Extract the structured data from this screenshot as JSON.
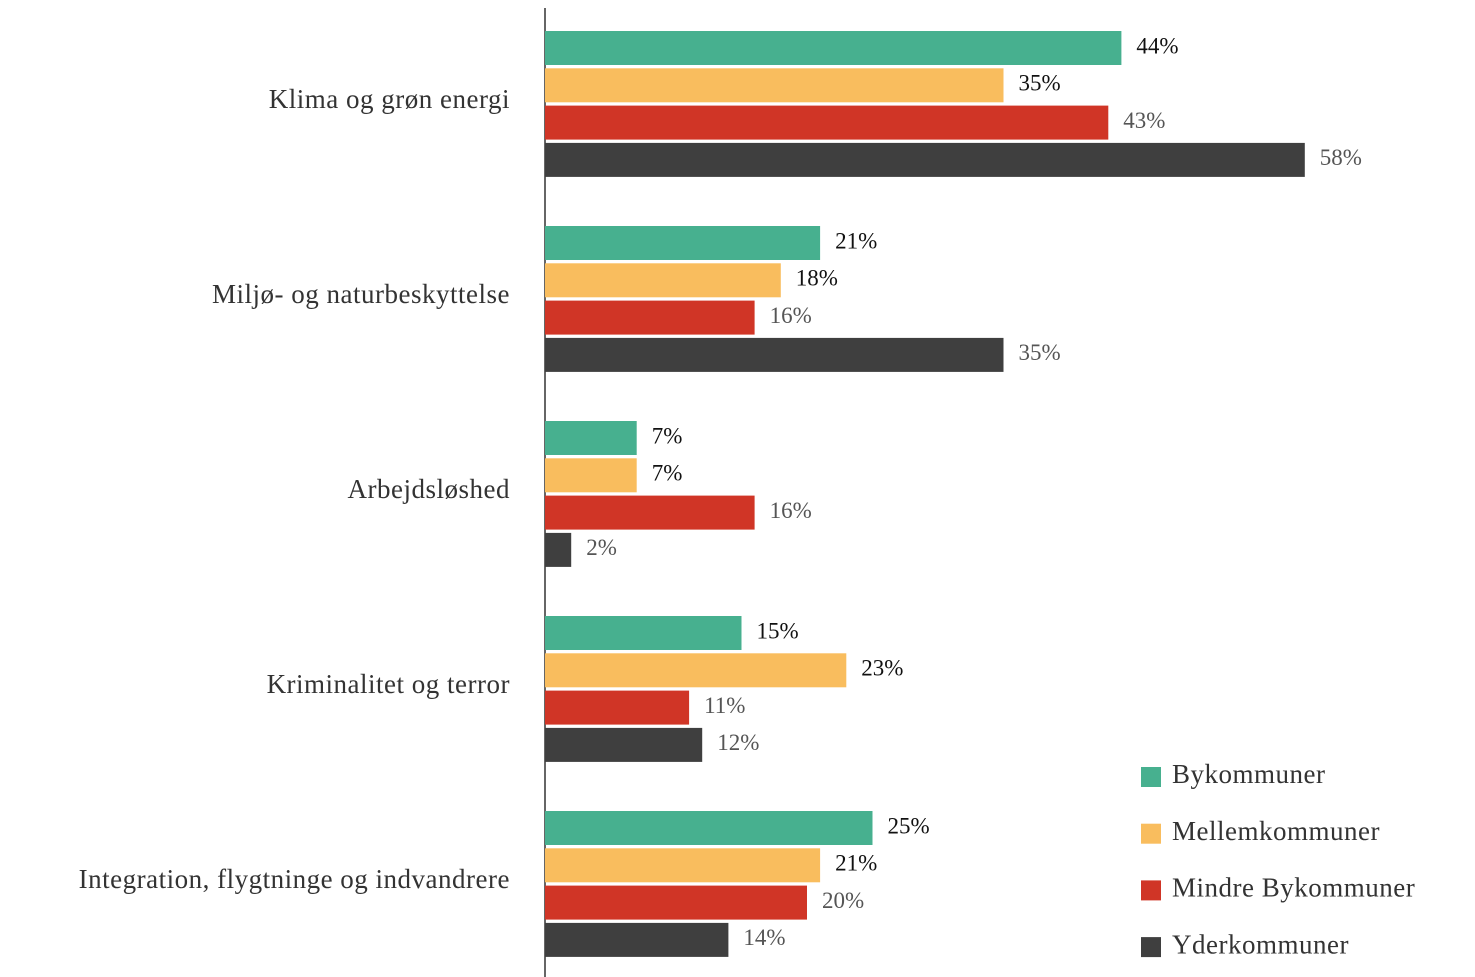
{
  "chart_data": {
    "type": "hbar",
    "categories": [
      "Klima og grøn energi",
      "Miljø- og naturbeskyttelse",
      "Arbejdsløshed",
      "Kriminalitet og terror",
      "Integration, flygtninge og indvandrere"
    ],
    "series": [
      {
        "name": "Bykommuner",
        "color": "#47b08f",
        "values": [
          44,
          21,
          7,
          15,
          25
        ],
        "value_labels": [
          "44%",
          "21%",
          "7%",
          "15%",
          "25%"
        ]
      },
      {
        "name": "Mellemkommuner",
        "color": "#f9bd5e",
        "values": [
          35,
          18,
          7,
          23,
          21
        ],
        "value_labels": [
          "35%",
          "18%",
          "7%",
          "23%",
          "21%"
        ]
      },
      {
        "name": "Mindre Bykommuner",
        "color": "#d03526",
        "values": [
          43,
          16,
          16,
          11,
          20
        ],
        "value_labels": [
          "43%",
          "16%",
          "16%",
          "11%",
          "20%"
        ]
      },
      {
        "name": "Yderkommuner",
        "color": "#3f3f3f",
        "values": [
          58,
          35,
          2,
          12,
          14
        ],
        "value_labels": [
          "58%",
          "35%",
          "2%",
          "12%",
          "14%"
        ]
      }
    ],
    "xlim": [
      0,
      70
    ],
    "legend": "lower right"
  }
}
